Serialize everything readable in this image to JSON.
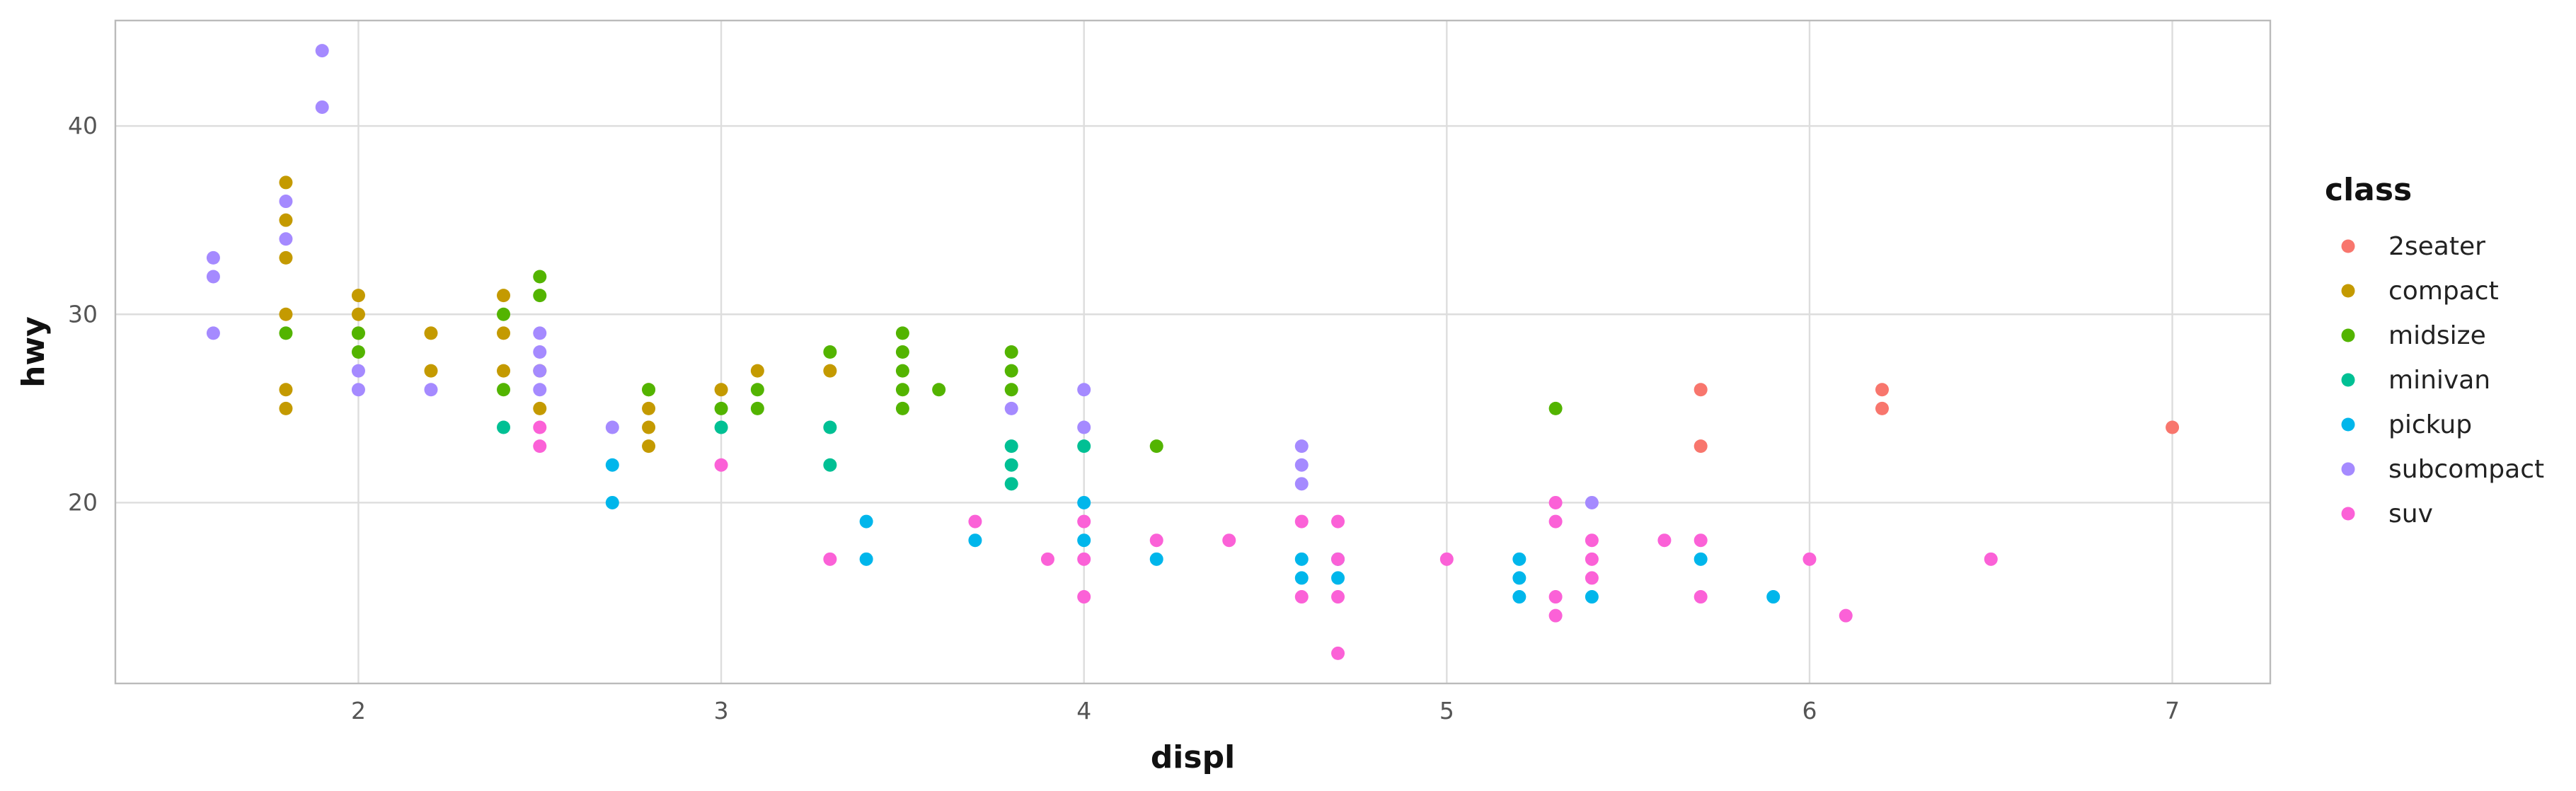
{
  "chart_data": {
    "type": "scatter",
    "xlabel": "displ",
    "ylabel": "hwy",
    "xlim": [
      1.33,
      7.27
    ],
    "ylim": [
      10.4,
      45.6
    ],
    "x_ticks": [
      2,
      3,
      4,
      5,
      6,
      7
    ],
    "y_ticks": [
      20,
      30,
      40
    ],
    "grid": true,
    "legend": {
      "title": "class",
      "position": "right",
      "entries": [
        "2seater",
        "compact",
        "midsize",
        "minivan",
        "pickup",
        "subcompact",
        "suv"
      ]
    },
    "colors": {
      "2seater": "#F8766D",
      "compact": "#C49A00",
      "midsize": "#53B400",
      "minivan": "#00C094",
      "pickup": "#00B6EB",
      "subcompact": "#A58AFF",
      "suv": "#FB61D7"
    },
    "series": [
      {
        "name": "2seater",
        "points": [
          [
            5.7,
            26
          ],
          [
            5.7,
            23
          ],
          [
            6.2,
            26
          ],
          [
            6.2,
            25
          ],
          [
            7.0,
            24
          ]
        ]
      },
      {
        "name": "compact",
        "points": [
          [
            1.8,
            37
          ],
          [
            1.8,
            35
          ],
          [
            1.8,
            33
          ],
          [
            1.8,
            30
          ],
          [
            1.8,
            26
          ],
          [
            1.8,
            25
          ],
          [
            2.0,
            31
          ],
          [
            2.0,
            30
          ],
          [
            2.0,
            29
          ],
          [
            2.2,
            29
          ],
          [
            2.2,
            27
          ],
          [
            2.4,
            31
          ],
          [
            2.4,
            29
          ],
          [
            2.4,
            27
          ],
          [
            2.5,
            27
          ],
          [
            2.5,
            25
          ],
          [
            2.8,
            26
          ],
          [
            2.8,
            25
          ],
          [
            2.8,
            24
          ],
          [
            2.8,
            23
          ],
          [
            3.0,
            26
          ],
          [
            3.1,
            27
          ],
          [
            3.3,
            27
          ]
        ]
      },
      {
        "name": "midsize",
        "points": [
          [
            1.8,
            29
          ],
          [
            2.0,
            29
          ],
          [
            2.0,
            28
          ],
          [
            2.4,
            30
          ],
          [
            2.4,
            26
          ],
          [
            2.5,
            32
          ],
          [
            2.5,
            31
          ],
          [
            2.8,
            26
          ],
          [
            3.0,
            25
          ],
          [
            3.1,
            26
          ],
          [
            3.1,
            25
          ],
          [
            3.3,
            28
          ],
          [
            3.5,
            29
          ],
          [
            3.5,
            28
          ],
          [
            3.5,
            27
          ],
          [
            3.5,
            26
          ],
          [
            3.5,
            25
          ],
          [
            3.6,
            26
          ],
          [
            3.8,
            28
          ],
          [
            3.8,
            27
          ],
          [
            3.8,
            26
          ],
          [
            4.2,
            23
          ],
          [
            5.3,
            25
          ]
        ]
      },
      {
        "name": "minivan",
        "points": [
          [
            2.4,
            24
          ],
          [
            3.0,
            24
          ],
          [
            3.3,
            24
          ],
          [
            3.3,
            22
          ],
          [
            3.8,
            23
          ],
          [
            3.8,
            22
          ],
          [
            3.8,
            21
          ],
          [
            4.0,
            23
          ]
        ]
      },
      {
        "name": "pickup",
        "points": [
          [
            2.7,
            22
          ],
          [
            2.7,
            20
          ],
          [
            3.4,
            19
          ],
          [
            3.4,
            17
          ],
          [
            3.7,
            18
          ],
          [
            4.0,
            20
          ],
          [
            4.0,
            18
          ],
          [
            4.2,
            17
          ],
          [
            4.6,
            17
          ],
          [
            4.6,
            16
          ],
          [
            4.7,
            17
          ],
          [
            4.7,
            16
          ],
          [
            5.2,
            17
          ],
          [
            5.2,
            16
          ],
          [
            5.2,
            15
          ],
          [
            5.4,
            15
          ],
          [
            5.7,
            17
          ],
          [
            5.9,
            15
          ]
        ]
      },
      {
        "name": "subcompact",
        "points": [
          [
            1.6,
            33
          ],
          [
            1.6,
            32
          ],
          [
            1.6,
            29
          ],
          [
            1.8,
            36
          ],
          [
            1.8,
            34
          ],
          [
            1.9,
            44
          ],
          [
            1.9,
            41
          ],
          [
            2.0,
            27
          ],
          [
            2.0,
            26
          ],
          [
            2.2,
            26
          ],
          [
            2.5,
            29
          ],
          [
            2.5,
            28
          ],
          [
            2.5,
            27
          ],
          [
            2.5,
            26
          ],
          [
            2.7,
            24
          ],
          [
            3.8,
            25
          ],
          [
            4.0,
            26
          ],
          [
            4.0,
            24
          ],
          [
            4.6,
            23
          ],
          [
            4.6,
            22
          ],
          [
            4.6,
            21
          ],
          [
            5.4,
            20
          ]
        ]
      },
      {
        "name": "suv",
        "points": [
          [
            2.5,
            24
          ],
          [
            2.5,
            23
          ],
          [
            3.0,
            22
          ],
          [
            3.3,
            17
          ],
          [
            3.7,
            19
          ],
          [
            3.9,
            17
          ],
          [
            4.0,
            19
          ],
          [
            4.0,
            17
          ],
          [
            4.0,
            15
          ],
          [
            4.2,
            18
          ],
          [
            4.4,
            18
          ],
          [
            4.6,
            19
          ],
          [
            4.6,
            15
          ],
          [
            4.7,
            19
          ],
          [
            4.7,
            17
          ],
          [
            4.7,
            15
          ],
          [
            4.7,
            12
          ],
          [
            5.0,
            17
          ],
          [
            5.3,
            20
          ],
          [
            5.3,
            19
          ],
          [
            5.3,
            15
          ],
          [
            5.3,
            14
          ],
          [
            5.4,
            18
          ],
          [
            5.4,
            17
          ],
          [
            5.4,
            16
          ],
          [
            5.6,
            18
          ],
          [
            5.7,
            18
          ],
          [
            5.7,
            15
          ],
          [
            6.0,
            17
          ],
          [
            6.1,
            14
          ],
          [
            6.5,
            17
          ]
        ]
      }
    ]
  }
}
